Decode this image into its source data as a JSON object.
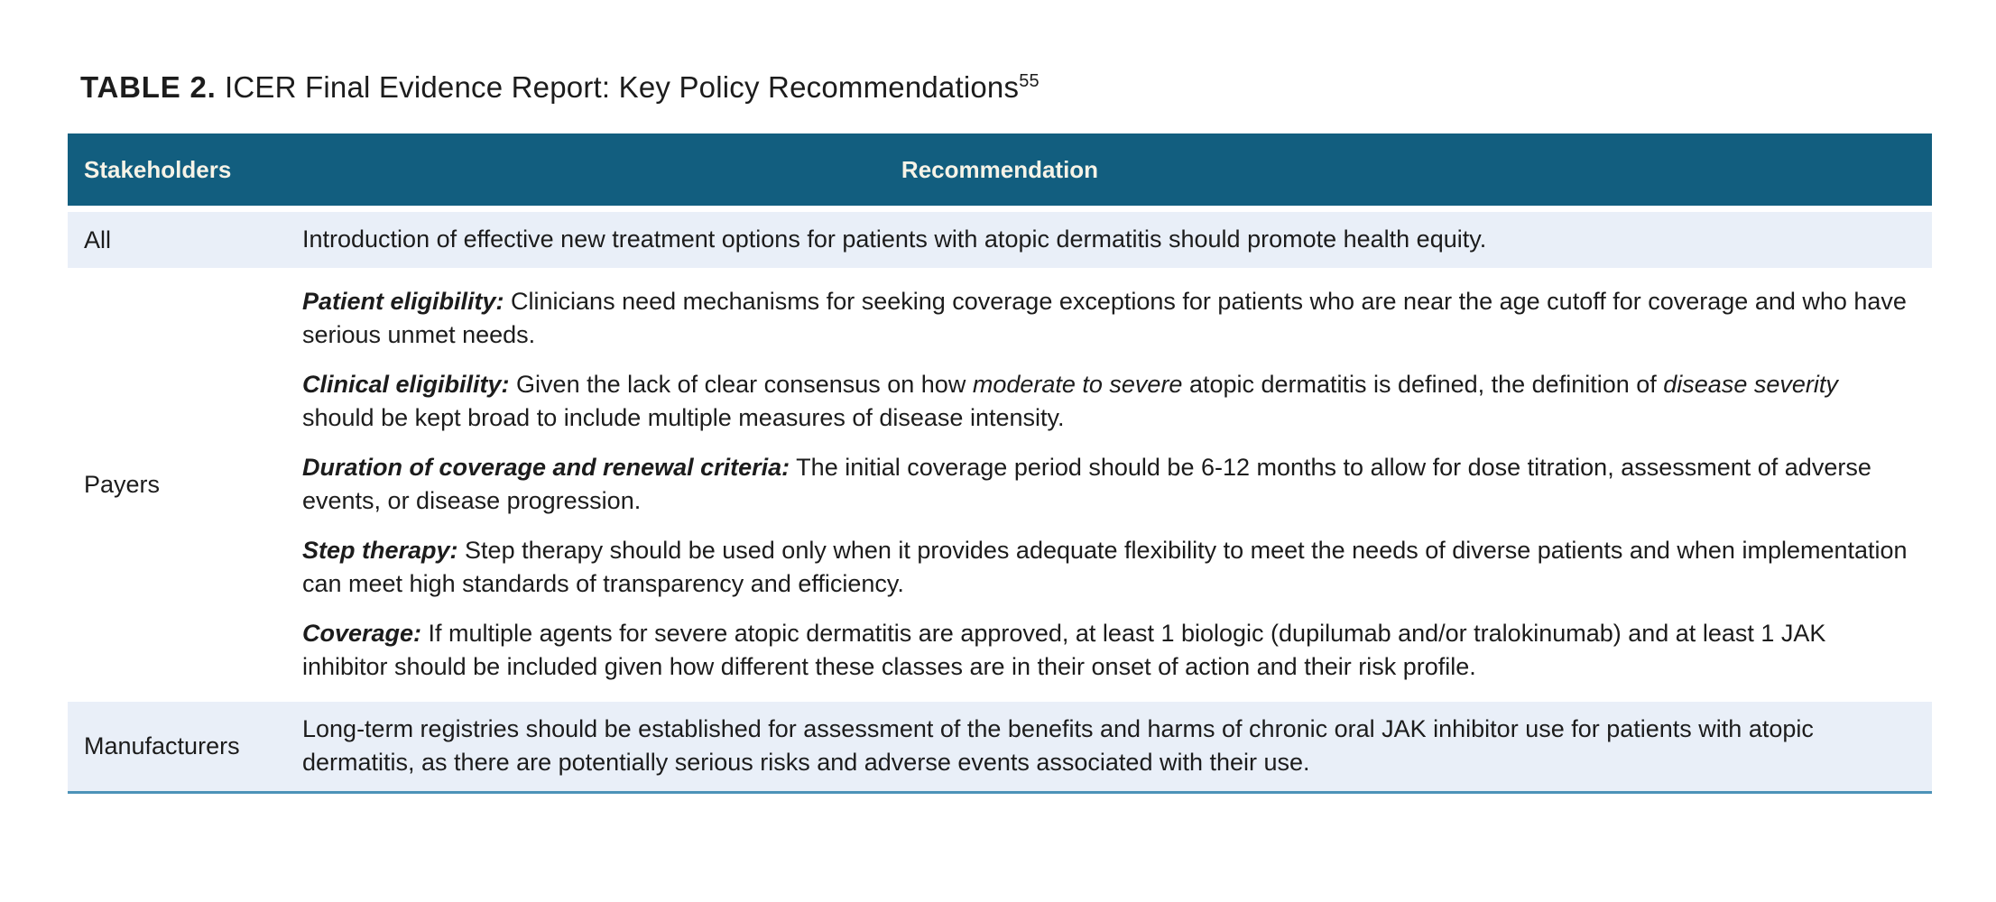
{
  "title": {
    "label": "TABLE 2.",
    "text": " ICER Final Evidence Report: Key Policy Recommendations",
    "superscript": "55"
  },
  "table": {
    "colors": {
      "header_bg": "#125E7F",
      "header_text": "#F6F3E7",
      "row_alt_bg": "#E9EFF8",
      "row_bg": "#FFFFFF",
      "bottom_border": "#4C92B8",
      "body_text": "#1C1C1C"
    },
    "headers": [
      {
        "label": "Stakeholders"
      },
      {
        "label": "Recommendation"
      }
    ],
    "rows": [
      {
        "stakeholder": "All",
        "paragraphs": [
          {
            "text": "Introduction of effective new treatment options for patients with atopic dermatitis should promote health equity."
          }
        ]
      },
      {
        "stakeholder": "Payers",
        "paragraphs": [
          {
            "lead": "Patient eligibility:",
            "text": " Clinicians need mechanisms for seeking coverage exceptions for patients who are near the age cutoff for coverage and who have serious unmet needs."
          },
          {
            "lead": "Clinical eligibility:",
            "text1": " Given the lack of clear consensus on how ",
            "italic1": "moderate to severe",
            "text2": " atopic dermatitis is defined, the definition of ",
            "italic2": "disease severity",
            "text3": " should be kept broad to include multiple measures of disease intensity."
          },
          {
            "lead": "Duration of coverage and renewal criteria:",
            "text": " The initial coverage period should be 6-12 months to allow for dose titration, assessment of adverse events, or disease progression."
          },
          {
            "lead": "Step therapy:",
            "text": " Step therapy should be used only when it provides adequate flexibility to meet the needs of diverse patients and when implementation can meet high standards of transparency and efficiency."
          },
          {
            "lead": "Coverage:",
            "text": " If multiple agents for severe atopic dermatitis are approved, at least 1 biologic (dupilumab and/or tralokinumab) and at least 1 JAK inhibitor should be included given how different these classes are in their onset of action and their risk profile."
          }
        ]
      },
      {
        "stakeholder": "Manufacturers",
        "paragraphs": [
          {
            "text": "Long-term registries should be established for assessment of the benefits and harms of chronic oral JAK inhibitor use for patients with atopic dermatitis, as there are potentially serious risks and adverse events associated with their use."
          }
        ]
      }
    ]
  }
}
